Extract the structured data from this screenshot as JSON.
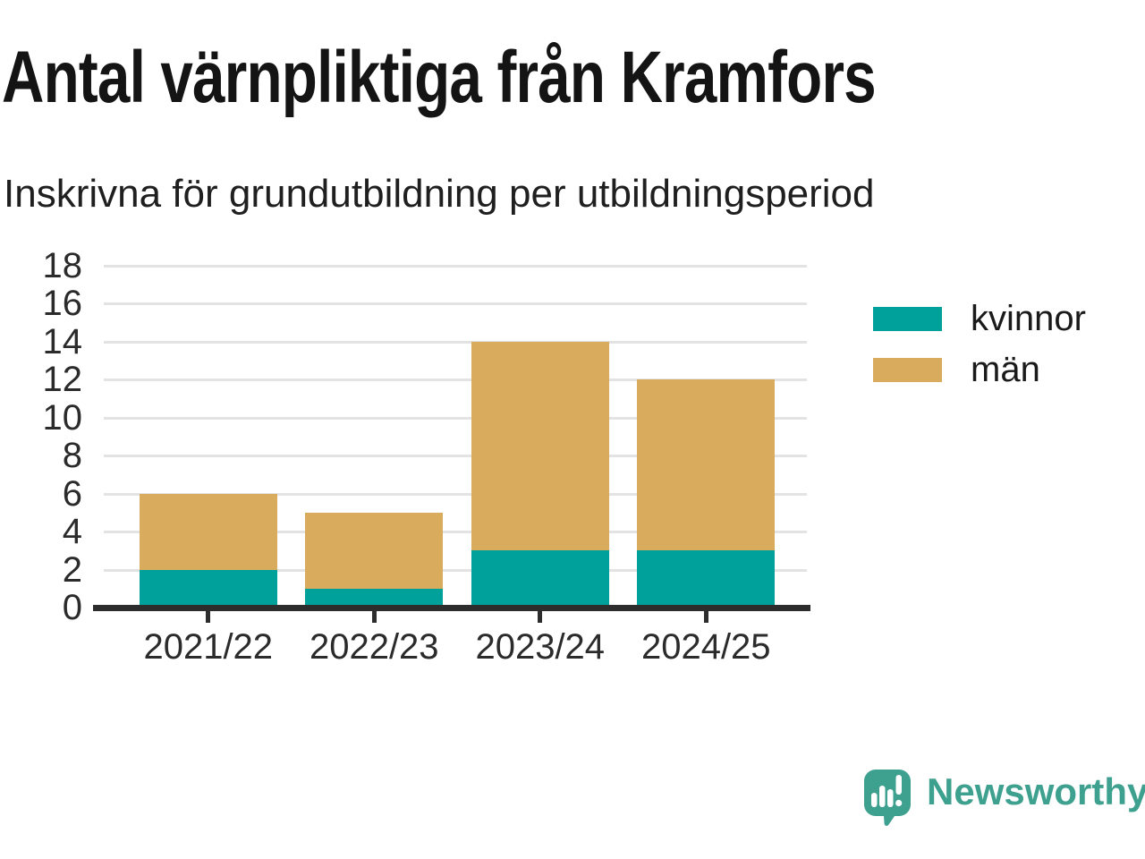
{
  "header": {
    "title": "Antal värnpliktiga från Kramfors",
    "subtitle": "Inskrivna för grundutbildning per utbildningsperiod"
  },
  "chart_data": {
    "type": "bar",
    "stacked": true,
    "title": "Antal värnpliktiga från Kramfors",
    "subtitle": "Inskrivna för grundutbildning per utbildningsperiod",
    "categories": [
      "2021/22",
      "2022/23",
      "2023/24",
      "2024/25"
    ],
    "series": [
      {
        "name": "kvinnor",
        "color": "#00a19a",
        "values": [
          2,
          1,
          3,
          3
        ]
      },
      {
        "name": "män",
        "color": "#d9ab5c",
        "values": [
          4,
          4,
          11,
          9
        ]
      }
    ],
    "stack_totals": [
      6,
      5,
      14,
      12
    ],
    "xlabel": "",
    "ylabel": "",
    "ylim": [
      0,
      18
    ],
    "yticks": [
      0,
      2,
      4,
      6,
      8,
      10,
      12,
      14,
      16,
      18
    ],
    "grid": true,
    "legend_position": "right"
  },
  "legend": {
    "items": [
      {
        "label": "kvinnor",
        "color": "#00a19a"
      },
      {
        "label": "män",
        "color": "#d9ab5c"
      }
    ]
  },
  "branding": {
    "logo_text": "Newsworthy",
    "logo_color": "#3ea08e",
    "logo_icon": "newsworthy-speech-bubble-bar-chart-icon"
  },
  "colors": {
    "axis": "#2d2d2d",
    "gridline": "#e3e3e3",
    "text": "#1a1a1a"
  }
}
